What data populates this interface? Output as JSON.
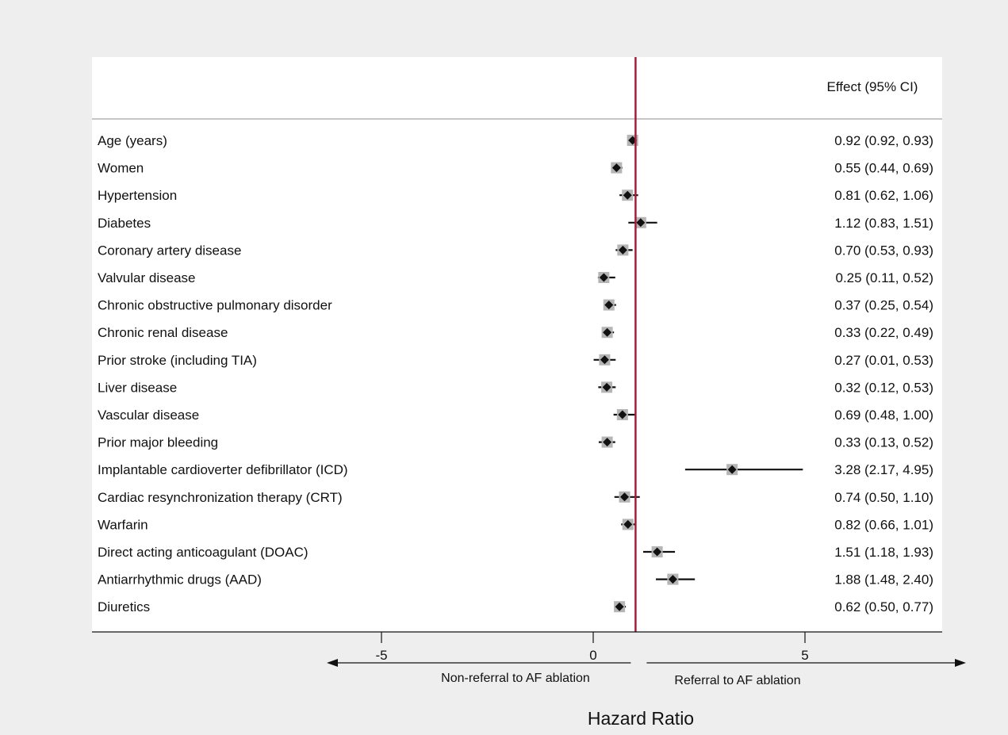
{
  "chart_data": {
    "type": "forest",
    "header": "Effect (95% CI)",
    "xlabel": "Hazard Ratio",
    "xlim": [
      -6.3,
      8.0
    ],
    "xticks": [
      -5,
      0,
      5
    ],
    "reference_line": 1,
    "direction_labels": {
      "left": "Non-referral to AF ablation",
      "right": "Referral to AF ablation"
    },
    "colors": {
      "reference_line": "#a31d3a",
      "marker": "#111111",
      "marker_halo": "#b5b5b5",
      "plot_background": "#ffffff",
      "figure_background": "#eeeeee"
    },
    "rows": [
      {
        "label": "Age (years)",
        "hr": 0.92,
        "lo": 0.92,
        "hi": 0.93,
        "text": "0.92 (0.92, 0.93)"
      },
      {
        "label": "Women",
        "hr": 0.55,
        "lo": 0.44,
        "hi": 0.69,
        "text": "0.55 (0.44, 0.69)"
      },
      {
        "label": "Hypertension",
        "hr": 0.81,
        "lo": 0.62,
        "hi": 1.06,
        "text": "0.81 (0.62, 1.06)"
      },
      {
        "label": "Diabetes",
        "hr": 1.12,
        "lo": 0.83,
        "hi": 1.51,
        "text": "1.12 (0.83, 1.51)"
      },
      {
        "label": "Coronary artery disease",
        "hr": 0.7,
        "lo": 0.53,
        "hi": 0.93,
        "text": "0.70 (0.53, 0.93)"
      },
      {
        "label": "Valvular disease",
        "hr": 0.25,
        "lo": 0.11,
        "hi": 0.52,
        "text": "0.25 (0.11, 0.52)"
      },
      {
        "label": "Chronic obstructive pulmonary disorder",
        "hr": 0.37,
        "lo": 0.25,
        "hi": 0.54,
        "text": "0.37 (0.25, 0.54)"
      },
      {
        "label": "Chronic renal disease",
        "hr": 0.33,
        "lo": 0.22,
        "hi": 0.49,
        "text": "0.33 (0.22, 0.49)"
      },
      {
        "label": "Prior stroke (including TIA)",
        "hr": 0.27,
        "lo": 0.01,
        "hi": 0.53,
        "text": "0.27 (0.01, 0.53)"
      },
      {
        "label": "Liver disease",
        "hr": 0.32,
        "lo": 0.12,
        "hi": 0.53,
        "text": "0.32 (0.12, 0.53)"
      },
      {
        "label": "Vascular disease",
        "hr": 0.69,
        "lo": 0.48,
        "hi": 1.0,
        "text": "0.69 (0.48, 1.00)"
      },
      {
        "label": "Prior major bleeding",
        "hr": 0.33,
        "lo": 0.13,
        "hi": 0.52,
        "text": "0.33 (0.13, 0.52)"
      },
      {
        "label": "Implantable cardioverter defibrillator (ICD)",
        "hr": 3.28,
        "lo": 2.17,
        "hi": 4.95,
        "text": "3.28 (2.17, 4.95)"
      },
      {
        "label": "Cardiac resynchronization therapy (CRT)",
        "hr": 0.74,
        "lo": 0.5,
        "hi": 1.1,
        "text": "0.74 (0.50, 1.10)"
      },
      {
        "label": "Warfarin",
        "hr": 0.82,
        "lo": 0.66,
        "hi": 1.01,
        "text": "0.82 (0.66, 1.01)"
      },
      {
        "label": "Direct acting anticoagulant (DOAC)",
        "hr": 1.51,
        "lo": 1.18,
        "hi": 1.93,
        "text": "1.51 (1.18, 1.93)"
      },
      {
        "label": "Antiarrhythmic drugs (AAD)",
        "hr": 1.88,
        "lo": 1.48,
        "hi": 2.4,
        "text": "1.88 (1.48, 2.40)"
      },
      {
        "label": "Diuretics",
        "hr": 0.62,
        "lo": 0.5,
        "hi": 0.77,
        "text": "0.62 (0.50, 0.77)"
      }
    ]
  }
}
